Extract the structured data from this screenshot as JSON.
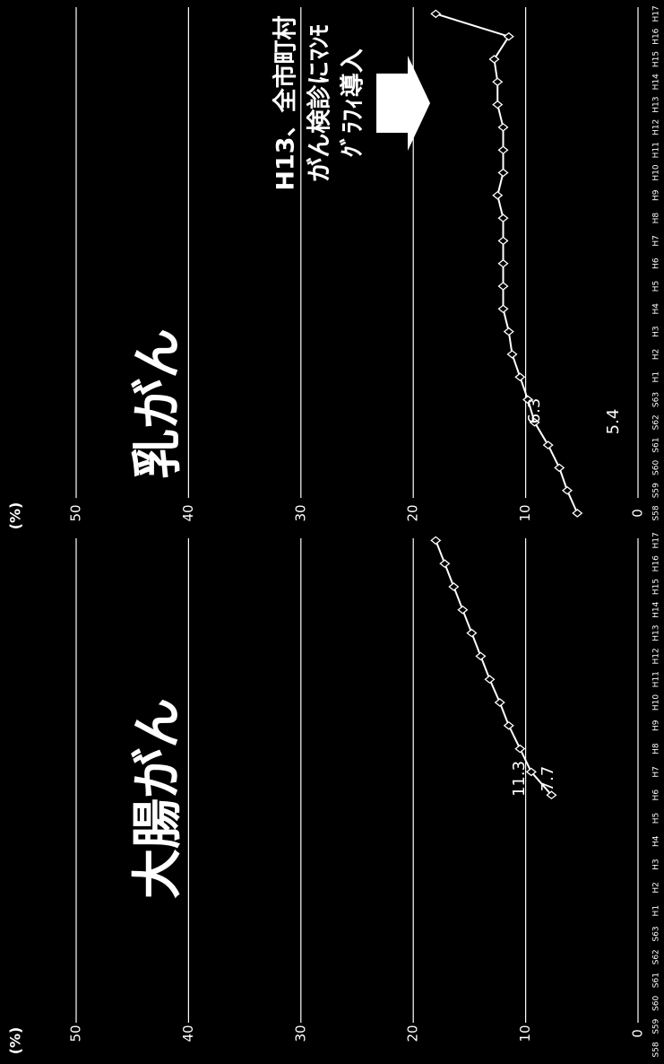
{
  "chart_data": [
    {
      "type": "line",
      "title": "大腸がん",
      "unit": "(%)",
      "categories": [
        "S58",
        "S59",
        "S60",
        "S61",
        "S62",
        "S63",
        "H1",
        "H2",
        "H3",
        "H4",
        "H5",
        "H6",
        "H7",
        "H8",
        "H9",
        "H10",
        "H11",
        "H12",
        "H13",
        "H14",
        "H15",
        "H16",
        "H17"
      ],
      "values": [
        null,
        null,
        null,
        null,
        null,
        null,
        null,
        null,
        null,
        null,
        null,
        7.7,
        9.5,
        10.5,
        11.5,
        12.3,
        13.2,
        14.0,
        14.8,
        15.6,
        16.4,
        17.2,
        18.0
      ],
      "color": "#ffffff",
      "ylim": [
        0,
        50
      ],
      "yticks": [
        0,
        10,
        20,
        30,
        40,
        50
      ],
      "grid": true,
      "annotations": [
        "11.3",
        "7.7"
      ]
    },
    {
      "type": "line",
      "title": "乳がん",
      "unit": "(%)",
      "categories": [
        "S58",
        "S59",
        "S60",
        "S61",
        "S62",
        "S63",
        "H1",
        "H2",
        "H3",
        "H4",
        "H5",
        "H6",
        "H7",
        "H8",
        "H9",
        "H10",
        "H11",
        "H12",
        "H13",
        "H14",
        "H15",
        "H16",
        "H17"
      ],
      "values": [
        5.4,
        6.3,
        7.0,
        8.0,
        9.2,
        9.8,
        10.5,
        11.2,
        11.5,
        12.0,
        12.0,
        12.0,
        12.0,
        12.0,
        12.5,
        12.0,
        12.0,
        12.0,
        12.5,
        12.5,
        12.8,
        11.5,
        18.0
      ],
      "color": "#ffffff",
      "ylim": [
        0,
        50
      ],
      "yticks": [
        0,
        10,
        20,
        30,
        40,
        50
      ],
      "grid": true,
      "annotations": [
        "6.3",
        "5.4"
      ],
      "callout": [
        "H13、全市町村",
        "がん検診にﾏﾝﾓ",
        "ｸﾞﾗﾌｨ導入"
      ]
    }
  ]
}
